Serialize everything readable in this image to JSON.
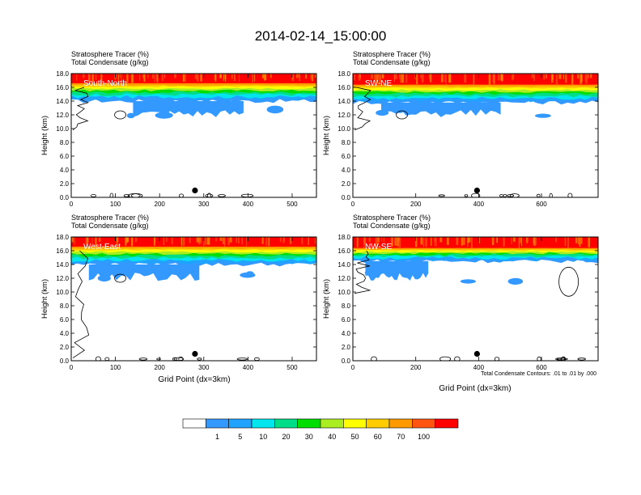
{
  "title": "2014-02-14_15:00:00",
  "header_line1": "Stratosphere Tracer   (%)",
  "header_line2": "Total Condensate   (g/kg)",
  "y_axis_label": "Height (km)",
  "x_axis_label": "Grid Point (dx=3km)",
  "contour_note": "Total Condensate Contours: .01 to .01 by .000",
  "colorbar": {
    "colors": [
      "#ffffff",
      "#3399ff",
      "#1fa3ff",
      "#00e5ee",
      "#00dd88",
      "#00dd00",
      "#aaee22",
      "#ffff00",
      "#ffcc00",
      "#ff9900",
      "#ff5511",
      "#ff0000"
    ],
    "labels": [
      "1",
      "5",
      "10",
      "20",
      "30",
      "40",
      "50",
      "60",
      "70",
      "100"
    ]
  },
  "panels": [
    {
      "label": "South-North",
      "xticks": [
        "0",
        "100",
        "200",
        "300",
        "400",
        "500"
      ],
      "yticks": [
        "0.0",
        "2.0",
        "4.0",
        "6.0",
        "8.0",
        "10.0",
        "12.0",
        "14.0",
        "16.0",
        "18.0"
      ],
      "marker": "280"
    },
    {
      "label": "SW-NE",
      "xticks": [
        "0",
        "200",
        "400",
        "600"
      ],
      "yticks": [
        "0.0",
        "2.0",
        "4.0",
        "6.0",
        "8.0",
        "10.0",
        "12.0",
        "14.0",
        "16.0",
        "18.0"
      ],
      "marker": "395"
    },
    {
      "label": "West-East",
      "xticks": [
        "0",
        "100",
        "200",
        "300",
        "400",
        "500"
      ],
      "yticks": [
        "0.0",
        "2.0",
        "4.0",
        "6.0",
        "8.0",
        "10.0",
        "12.0",
        "14.0",
        "16.0",
        "18.0"
      ],
      "marker": "280"
    },
    {
      "label": "NW-SE",
      "xticks": [
        "0",
        "200",
        "400",
        "600"
      ],
      "yticks": [
        "0.0",
        "2.0",
        "4.0",
        "6.0",
        "8.0",
        "10.0",
        "12.0",
        "14.0",
        "16.0",
        "18.0"
      ],
      "marker": "395"
    }
  ],
  "chart_data": {
    "type": "heatmap",
    "title": "2014-02-14_15:00:00",
    "ylabel": "Height (km)",
    "xlabel": "Grid Point (dx=3km)",
    "ylim": [
      0,
      18
    ],
    "panels": [
      {
        "name": "South-North",
        "xlim": [
          0,
          555
        ],
        "marker_x": 280,
        "marker_height_km": 1.0,
        "tracer_band": {
          "red_base_km": 16.6,
          "layer_bottom_km": 14.0,
          "blue_region_km": [
            11.0,
            14.0
          ],
          "blue_x_range": [
            140,
            390
          ]
        }
      },
      {
        "name": "SW-NE",
        "xlim": [
          0,
          780
        ],
        "marker_x": 395,
        "marker_height_km": 1.0,
        "tracer_band": {
          "red_base_km": 16.4,
          "layer_bottom_km": 13.8,
          "blue_region_km": [
            11.0,
            14.0
          ],
          "blue_x_range": [
            90,
            470
          ]
        }
      },
      {
        "name": "West-East",
        "xlim": [
          0,
          555
        ],
        "marker_x": 280,
        "marker_height_km": 1.0,
        "tracer_band": {
          "red_base_km": 16.6,
          "layer_bottom_km": 14.0,
          "blue_region_km": [
            11.0,
            14.0
          ],
          "blue_x_range": [
            40,
            290
          ]
        }
      },
      {
        "name": "NW-SE",
        "xlim": [
          0,
          780
        ],
        "marker_x": 395,
        "marker_height_km": 1.0,
        "tracer_band": {
          "red_base_km": 16.4,
          "layer_bottom_km": 14.5,
          "blue_region_km": [
            11.0,
            14.0
          ],
          "blue_x_range": [
            40,
            240
          ]
        }
      }
    ],
    "colorbar_levels": [
      1,
      5,
      10,
      20,
      30,
      40,
      50,
      60,
      70,
      100
    ],
    "contour": {
      "variable": "Total Condensate",
      "from": 0.01,
      "to": 0.01,
      "by": 0.0
    }
  }
}
